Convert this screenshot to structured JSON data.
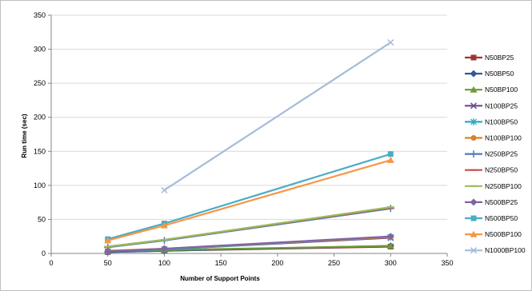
{
  "chart_data": {
    "type": "line",
    "title": "",
    "xlabel": "Number of Support Points",
    "ylabel": "Run time (sec)",
    "xlim": [
      0,
      350
    ],
    "ylim": [
      0,
      350
    ],
    "xticks": [
      0,
      50,
      100,
      150,
      200,
      250,
      300,
      350
    ],
    "yticks": [
      0,
      50,
      100,
      150,
      200,
      250,
      300,
      350
    ],
    "grid": "horizontal",
    "legend_position": "right",
    "series": [
      {
        "name": "N50BP25",
        "color": "#a0332f",
        "marker": "square",
        "x": [
          50,
          100,
          300
        ],
        "y": [
          2,
          4,
          10
        ]
      },
      {
        "name": "N50BP50",
        "color": "#2f5b96",
        "marker": "diamond",
        "x": [
          50,
          100,
          300
        ],
        "y": [
          2,
          4,
          11
        ]
      },
      {
        "name": "N50BP100",
        "color": "#6f9a35",
        "marker": "triangle",
        "x": [
          50,
          100,
          300
        ],
        "y": [
          3,
          5,
          11
        ]
      },
      {
        "name": "N100BP25",
        "color": "#6b4a8f",
        "marker": "x",
        "x": [
          50,
          100,
          300
        ],
        "y": [
          3,
          6,
          23
        ]
      },
      {
        "name": "N100BP50",
        "color": "#2aa8c4",
        "marker": "star",
        "x": [
          50,
          100,
          300
        ],
        "y": [
          3,
          6,
          24
        ]
      },
      {
        "name": "N100BP100",
        "color": "#d9822b",
        "marker": "circle",
        "x": [
          50,
          100,
          300
        ],
        "y": [
          4,
          7,
          24
        ]
      },
      {
        "name": "N250BP25",
        "color": "#4a7dba",
        "marker": "plus",
        "x": [
          50,
          100,
          300
        ],
        "y": [
          9,
          19,
          66
        ]
      },
      {
        "name": "N250BP50",
        "color": "#c0504d",
        "marker": "dash",
        "x": [
          50,
          100,
          300
        ],
        "y": [
          10,
          20,
          67
        ]
      },
      {
        "name": "N250BP100",
        "color": "#9bbb59",
        "marker": "dash",
        "x": [
          50,
          100,
          300
        ],
        "y": [
          10,
          20,
          68
        ]
      },
      {
        "name": "N500BP25",
        "color": "#8064a2",
        "marker": "diamond",
        "x": [
          50,
          100,
          300
        ],
        "y": [
          3,
          7,
          25
        ]
      },
      {
        "name": "N500BP50",
        "color": "#4bacc6",
        "marker": "square",
        "x": [
          50,
          100,
          300
        ],
        "y": [
          21,
          44,
          146
        ]
      },
      {
        "name": "N500BP100",
        "color": "#f79646",
        "marker": "triangle",
        "x": [
          50,
          100,
          300
        ],
        "y": [
          19,
          41,
          137
        ]
      },
      {
        "name": "N1000BP100",
        "color": "#a5bcd9",
        "marker": "x",
        "x": [
          100,
          300
        ],
        "y": [
          93,
          310
        ]
      }
    ]
  }
}
